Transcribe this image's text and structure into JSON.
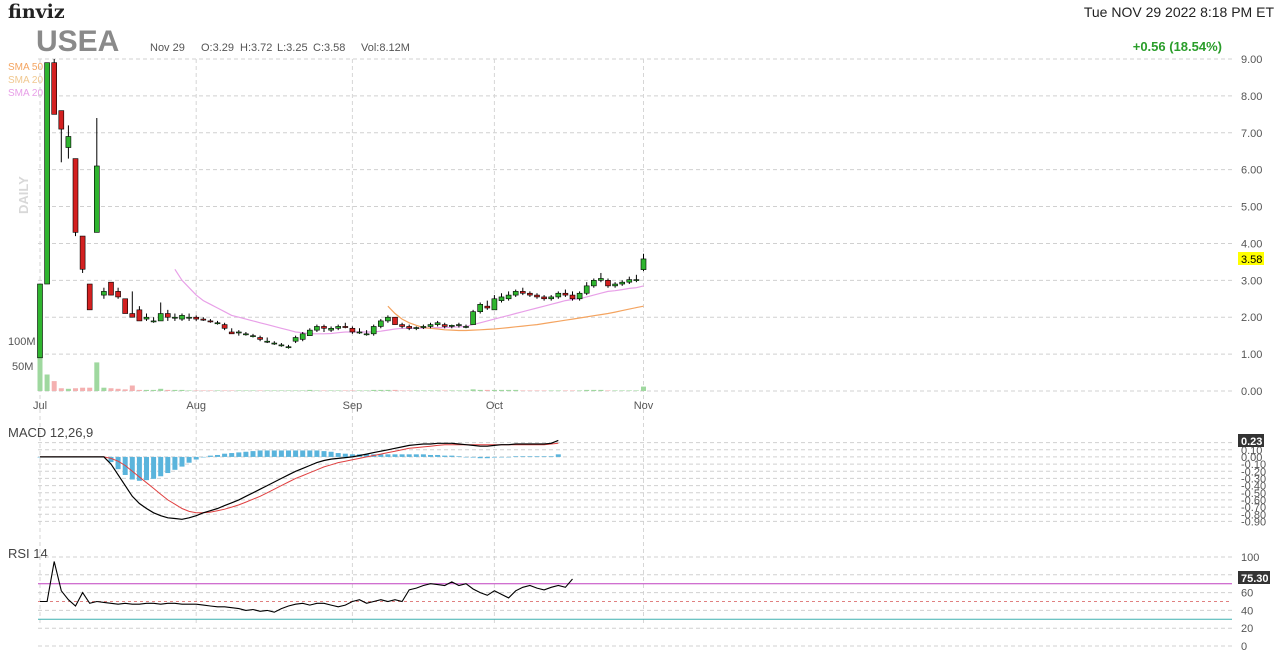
{
  "header": {
    "logo": "finviz",
    "datetime": "Tue NOV 29 2022 8:18 PM ET",
    "ticker": "USEA",
    "bar_date": "Nov 29",
    "open": "O:3.29",
    "high": "H:3.72",
    "low": "L:3.25",
    "close": "C:3.58",
    "volume": "Vol:8.12M",
    "change": "+0.56 (18.54%)"
  },
  "legend": {
    "sma50": "SMA 50",
    "sma20": "SMA 20",
    "sma200": "SMA 20",
    "daily": "DAILY"
  },
  "colors": {
    "up": "#2fb52f",
    "down": "#d32020",
    "sma50": "#f4a460",
    "sma20": "#e8a0e8",
    "macd_hist": "#5ab4dc",
    "macd_line": "#000000",
    "signal_line": "#e04040",
    "rsi_line": "#000000",
    "rsi_overbought": "#c040c0",
    "rsi_oversold": "#3fb0b0",
    "price_badge": "#ffff00"
  },
  "volume_labels": [
    "100M",
    "50M"
  ],
  "price_badge": "3.58",
  "macd_badge": "0.23",
  "rsi_badge": "75.30",
  "macd_title": "MACD 12,26,9",
  "rsi_title": "RSI 14",
  "chart_data": {
    "type": "candlestick",
    "price_axis": [
      "9.00",
      "8.00",
      "7.00",
      "6.00",
      "5.00",
      "4.00",
      "3.00",
      "2.00",
      "1.00",
      "0.00"
    ],
    "price_ylim": [
      0,
      9
    ],
    "months": [
      {
        "label": "Jul",
        "index": 0
      },
      {
        "label": "Aug",
        "index": 22
      },
      {
        "label": "Sep",
        "index": 44
      },
      {
        "label": "Oct",
        "index": 64
      },
      {
        "label": "Nov",
        "index": 85
      }
    ],
    "candles": [
      [
        0.9,
        2.9,
        0.9,
        2.9,
        95
      ],
      [
        2.9,
        8.9,
        2.9,
        8.9,
        30
      ],
      [
        8.9,
        9.0,
        7.5,
        7.5,
        18
      ],
      [
        7.6,
        7.6,
        6.2,
        7.1,
        5
      ],
      [
        6.6,
        7.2,
        6.3,
        6.9,
        4
      ],
      [
        6.3,
        6.3,
        4.2,
        4.3,
        5
      ],
      [
        4.2,
        4.2,
        3.2,
        3.3,
        6
      ],
      [
        2.9,
        2.9,
        2.2,
        2.2,
        6
      ],
      [
        4.3,
        7.4,
        4.3,
        6.1,
        52
      ],
      [
        2.6,
        2.8,
        2.5,
        2.7,
        6
      ],
      [
        2.95,
        2.95,
        2.6,
        2.6,
        5
      ],
      [
        2.7,
        2.8,
        2.5,
        2.55,
        4
      ],
      [
        2.5,
        2.5,
        2.1,
        2.1,
        3
      ],
      [
        2.1,
        2.7,
        2.0,
        2.0,
        10
      ],
      [
        2.2,
        2.3,
        1.9,
        1.9,
        2
      ],
      [
        1.95,
        2.1,
        1.9,
        2.0,
        2
      ],
      [
        1.9,
        2.0,
        1.85,
        1.9,
        2
      ],
      [
        1.9,
        2.4,
        1.9,
        2.1,
        4
      ],
      [
        2.1,
        2.2,
        1.9,
        2.0,
        2
      ],
      [
        2.0,
        2.1,
        1.9,
        2.0,
        2
      ],
      [
        1.95,
        2.1,
        1.9,
        2.05,
        2
      ],
      [
        2.0,
        2.1,
        1.9,
        2.0,
        1
      ],
      [
        2.0,
        2.05,
        1.9,
        1.95,
        1
      ],
      [
        1.95,
        2.0,
        1.9,
        1.92,
        1
      ],
      [
        1.9,
        1.95,
        1.85,
        1.88,
        1
      ],
      [
        1.85,
        1.9,
        1.8,
        1.85,
        1
      ],
      [
        1.8,
        1.85,
        1.65,
        1.7,
        1
      ],
      [
        1.6,
        1.7,
        1.55,
        1.55,
        1
      ],
      [
        1.6,
        1.65,
        1.5,
        1.6,
        1
      ],
      [
        1.55,
        1.6,
        1.5,
        1.55,
        1
      ],
      [
        1.5,
        1.55,
        1.45,
        1.5,
        1
      ],
      [
        1.45,
        1.5,
        1.35,
        1.4,
        1
      ],
      [
        1.35,
        1.45,
        1.3,
        1.35,
        1
      ],
      [
        1.3,
        1.35,
        1.25,
        1.3,
        1
      ],
      [
        1.25,
        1.3,
        1.2,
        1.25,
        1
      ],
      [
        1.2,
        1.25,
        1.15,
        1.2,
        1
      ],
      [
        1.35,
        1.5,
        1.3,
        1.45,
        1
      ],
      [
        1.4,
        1.6,
        1.35,
        1.55,
        1
      ],
      [
        1.5,
        1.7,
        1.5,
        1.65,
        2
      ],
      [
        1.65,
        1.8,
        1.6,
        1.75,
        1
      ],
      [
        1.75,
        1.8,
        1.6,
        1.7,
        1
      ],
      [
        1.65,
        1.75,
        1.6,
        1.7,
        1
      ],
      [
        1.7,
        1.8,
        1.65,
        1.75,
        1
      ],
      [
        1.75,
        1.85,
        1.7,
        1.72,
        1
      ],
      [
        1.7,
        1.75,
        1.55,
        1.6,
        1
      ],
      [
        1.6,
        1.7,
        1.55,
        1.6,
        1
      ],
      [
        1.55,
        1.65,
        1.5,
        1.55,
        1
      ],
      [
        1.55,
        1.8,
        1.5,
        1.75,
        2
      ],
      [
        1.75,
        1.95,
        1.7,
        1.9,
        2
      ],
      [
        1.9,
        2.05,
        1.85,
        2.0,
        2
      ],
      [
        2.0,
        2.0,
        1.8,
        1.8,
        2
      ],
      [
        1.8,
        1.85,
        1.7,
        1.75,
        1
      ],
      [
        1.75,
        1.8,
        1.65,
        1.7,
        1
      ],
      [
        1.7,
        1.75,
        1.65,
        1.72,
        1
      ],
      [
        1.72,
        1.8,
        1.68,
        1.75,
        1
      ],
      [
        1.75,
        1.85,
        1.7,
        1.8,
        1
      ],
      [
        1.8,
        1.9,
        1.75,
        1.85,
        1
      ],
      [
        1.8,
        1.85,
        1.7,
        1.75,
        1
      ],
      [
        1.75,
        1.8,
        1.7,
        1.78,
        1
      ],
      [
        1.78,
        1.85,
        1.72,
        1.8,
        1
      ],
      [
        1.75,
        1.8,
        1.7,
        1.75,
        1
      ],
      [
        1.8,
        2.2,
        1.8,
        2.15,
        3
      ],
      [
        2.15,
        2.4,
        2.1,
        2.35,
        2
      ],
      [
        2.3,
        2.45,
        2.2,
        2.25,
        2
      ],
      [
        2.2,
        2.6,
        2.2,
        2.5,
        2
      ],
      [
        2.45,
        2.65,
        2.4,
        2.55,
        2
      ],
      [
        2.5,
        2.7,
        2.45,
        2.6,
        2
      ],
      [
        2.6,
        2.75,
        2.55,
        2.7,
        2
      ],
      [
        2.7,
        2.8,
        2.6,
        2.65,
        1
      ],
      [
        2.65,
        2.7,
        2.55,
        2.6,
        1
      ],
      [
        2.6,
        2.65,
        2.5,
        2.55,
        1
      ],
      [
        2.55,
        2.6,
        2.45,
        2.5,
        1
      ],
      [
        2.5,
        2.6,
        2.45,
        2.55,
        1
      ],
      [
        2.55,
        2.7,
        2.5,
        2.65,
        1
      ],
      [
        2.65,
        2.75,
        2.55,
        2.6,
        1
      ],
      [
        2.6,
        2.7,
        2.45,
        2.5,
        1
      ],
      [
        2.5,
        2.7,
        2.45,
        2.65,
        1
      ],
      [
        2.65,
        2.95,
        2.6,
        2.85,
        2
      ],
      [
        2.85,
        3.05,
        2.8,
        3.0,
        2
      ],
      [
        3.0,
        3.2,
        2.95,
        3.05,
        2
      ],
      [
        3.0,
        3.05,
        2.8,
        2.85,
        1
      ],
      [
        2.85,
        2.95,
        2.8,
        2.9,
        1
      ],
      [
        2.9,
        3.0,
        2.85,
        2.95,
        1
      ],
      [
        2.95,
        3.1,
        2.9,
        3.02,
        1
      ],
      [
        3.0,
        3.15,
        2.95,
        3.02,
        1
      ],
      [
        3.29,
        3.72,
        3.25,
        3.58,
        8
      ]
    ],
    "sma20": [
      null,
      null,
      null,
      null,
      null,
      null,
      null,
      null,
      null,
      null,
      null,
      null,
      null,
      null,
      null,
      null,
      null,
      null,
      null,
      3.3,
      3.0,
      2.8,
      2.6,
      2.45,
      2.35,
      2.25,
      2.15,
      2.05,
      2.0,
      1.95,
      1.9,
      1.85,
      1.8,
      1.75,
      1.7,
      1.65,
      1.6,
      1.58,
      1.55,
      1.55,
      1.55,
      1.56,
      1.58,
      1.6,
      1.6,
      1.6,
      1.6,
      1.6,
      1.62,
      1.65,
      1.68,
      1.7,
      1.7,
      1.7,
      1.7,
      1.71,
      1.72,
      1.72,
      1.73,
      1.74,
      1.75,
      1.8,
      1.85,
      1.9,
      1.95,
      2.0,
      2.05,
      2.1,
      2.15,
      2.2,
      2.25,
      2.3,
      2.35,
      2.4,
      2.45,
      2.48,
      2.5,
      2.55,
      2.6,
      2.65,
      2.7,
      2.72,
      2.75,
      2.78,
      2.8,
      2.85
    ],
    "sma50": [
      null,
      null,
      null,
      null,
      null,
      null,
      null,
      null,
      null,
      null,
      null,
      null,
      null,
      null,
      null,
      null,
      null,
      null,
      null,
      null,
      null,
      null,
      null,
      null,
      null,
      null,
      null,
      null,
      null,
      null,
      null,
      null,
      null,
      null,
      null,
      null,
      null,
      null,
      null,
      null,
      null,
      null,
      null,
      null,
      null,
      null,
      null,
      null,
      null,
      2.3,
      2.1,
      1.95,
      1.85,
      1.78,
      1.72,
      1.7,
      1.68,
      1.66,
      1.65,
      1.64,
      1.64,
      1.65,
      1.66,
      1.67,
      1.68,
      1.7,
      1.72,
      1.74,
      1.76,
      1.78,
      1.8,
      1.83,
      1.86,
      1.89,
      1.92,
      1.95,
      1.98,
      2.01,
      2.04,
      2.07,
      2.1,
      2.14,
      2.18,
      2.22,
      2.26,
      2.3
    ],
    "macd_axis": [
      "0.20",
      "0.10",
      "0.00",
      "-0.10",
      "-0.20",
      "-0.30",
      "-0.40",
      "-0.50",
      "-0.60",
      "-0.70",
      "-0.80",
      "-0.90"
    ],
    "macd_ylim": [
      -0.95,
      0.25
    ],
    "macd": [
      0,
      0,
      0,
      0,
      0,
      0,
      0,
      0,
      0,
      0,
      -0.1,
      -0.25,
      -0.4,
      -0.55,
      -0.65,
      -0.72,
      -0.78,
      -0.82,
      -0.85,
      -0.86,
      -0.87,
      -0.85,
      -0.82,
      -0.78,
      -0.75,
      -0.72,
      -0.68,
      -0.64,
      -0.6,
      -0.55,
      -0.5,
      -0.45,
      -0.4,
      -0.35,
      -0.3,
      -0.25,
      -0.2,
      -0.16,
      -0.12,
      -0.08,
      -0.05,
      -0.03,
      -0.02,
      -0.01,
      0,
      0.02,
      0.04,
      0.06,
      0.08,
      0.1,
      0.12,
      0.14,
      0.16,
      0.17,
      0.18,
      0.18,
      0.19,
      0.19,
      0.19,
      0.18,
      0.17,
      0.16,
      0.15,
      0.15,
      0.16,
      0.17,
      0.17,
      0.18,
      0.18,
      0.18,
      0.18,
      0.18,
      0.19,
      0.23
    ],
    "signal": [
      0,
      0,
      0,
      0,
      0,
      0,
      0,
      0,
      0,
      0,
      -0.02,
      -0.06,
      -0.12,
      -0.2,
      -0.28,
      -0.36,
      -0.44,
      -0.52,
      -0.6,
      -0.66,
      -0.72,
      -0.76,
      -0.78,
      -0.78,
      -0.77,
      -0.75,
      -0.73,
      -0.7,
      -0.67,
      -0.63,
      -0.59,
      -0.55,
      -0.5,
      -0.45,
      -0.4,
      -0.35,
      -0.3,
      -0.26,
      -0.22,
      -0.18,
      -0.14,
      -0.11,
      -0.08,
      -0.06,
      -0.04,
      -0.02,
      0,
      0.02,
      0.04,
      0.06,
      0.08,
      0.1,
      0.12,
      0.13,
      0.14,
      0.15,
      0.16,
      0.17,
      0.17,
      0.17,
      0.17,
      0.17,
      0.17,
      0.17,
      0.17,
      0.17,
      0.17,
      0.17,
      0.17,
      0.17,
      0.17,
      0.17,
      0.18,
      0.19
    ],
    "rsi_axis": [
      "100",
      "80",
      "60",
      "40",
      "20",
      "0"
    ],
    "rsi_ylim": [
      0,
      100
    ],
    "rsi_levels": [
      70,
      50,
      30
    ],
    "rsi": [
      50,
      50,
      95,
      62,
      52,
      45,
      60,
      48,
      50,
      49,
      48,
      47,
      48,
      47,
      47,
      48,
      48,
      47,
      48,
      48,
      47,
      47,
      47,
      46,
      45,
      44,
      44,
      43,
      42,
      40,
      41,
      39,
      40,
      38,
      42,
      45,
      47,
      48,
      46,
      48,
      48,
      46,
      44,
      46,
      50,
      52,
      48,
      50,
      52,
      50,
      52,
      50,
      63,
      65,
      68,
      70,
      69,
      68,
      72,
      68,
      70,
      64,
      60,
      57,
      62,
      58,
      54,
      62,
      66,
      68,
      65,
      63,
      66,
      68,
      66,
      75.3
    ]
  }
}
